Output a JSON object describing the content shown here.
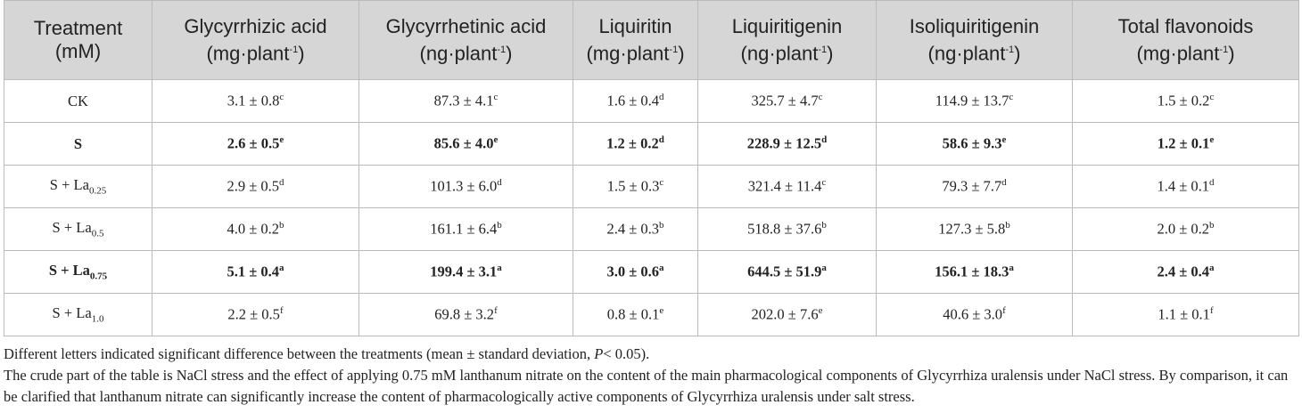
{
  "table": {
    "header": [
      {
        "text": "Treatment (mM)"
      },
      {
        "text": "Glycyrrhizic acid (mg·plant",
        "sup": "-1",
        "tail": ")"
      },
      {
        "text": "Glycyrrhetinic acid (ng·plant",
        "sup": "-1",
        "tail": ")"
      },
      {
        "text": "Liquiritin (mg·plant",
        "sup": "-1",
        "tail": ")"
      },
      {
        "text": "Liquiritigenin (ng·plant",
        "sup": "-1",
        "tail": ")"
      },
      {
        "text": "Isoliquiritigenin (ng·plant",
        "sup": "-1",
        "tail": ")"
      },
      {
        "text": "Total flavonoids (mg·plant",
        "sup": "-1",
        "tail": ")"
      }
    ],
    "rows": [
      {
        "bold": false,
        "cells": [
          {
            "text": "CK"
          },
          {
            "text": "3.1 ± 0.8",
            "sup": "c"
          },
          {
            "text": "87.3 ± 4.1",
            "sup": "c"
          },
          {
            "text": "1.6 ± 0.4",
            "sup": "d"
          },
          {
            "text": "325.7 ± 4.7",
            "sup": "c"
          },
          {
            "text": "114.9 ± 13.7",
            "sup": "c"
          },
          {
            "text": "1.5 ± 0.2",
            "sup": "c"
          }
        ]
      },
      {
        "bold": true,
        "cells": [
          {
            "text": "S"
          },
          {
            "text": "2.6 ± 0.5",
            "sup": "e"
          },
          {
            "text": "85.6 ± 4.0",
            "sup": "e"
          },
          {
            "text": "1.2 ± 0.2",
            "sup": "d"
          },
          {
            "text": "228.9 ± 12.5",
            "sup": "d"
          },
          {
            "text": "58.6 ± 9.3",
            "sup": "e"
          },
          {
            "text": "1.2 ± 0.1",
            "sup": "e"
          }
        ]
      },
      {
        "bold": false,
        "cells": [
          {
            "text": "S + La",
            "sub": "0.25"
          },
          {
            "text": "2.9 ± 0.5",
            "sup": "d"
          },
          {
            "text": "101.3 ± 6.0",
            "sup": "d"
          },
          {
            "text": "1.5 ± 0.3",
            "sup": "c"
          },
          {
            "text": "321.4 ± 11.4",
            "sup": "c"
          },
          {
            "text": "79.3 ± 7.7",
            "sup": "d"
          },
          {
            "text": "1.4 ± 0.1",
            "sup": "d"
          }
        ]
      },
      {
        "bold": false,
        "cells": [
          {
            "text": "S + La",
            "sub": "0.5"
          },
          {
            "text": "4.0 ± 0.2",
            "sup": "b"
          },
          {
            "text": "161.1 ± 6.4",
            "sup": "b"
          },
          {
            "text": "2.4 ± 0.3",
            "sup": "b"
          },
          {
            "text": "518.8 ± 37.6",
            "sup": "b"
          },
          {
            "text": "127.3 ± 5.8",
            "sup": "b"
          },
          {
            "text": "2.0 ± 0.2",
            "sup": "b"
          }
        ]
      },
      {
        "bold": true,
        "cells": [
          {
            "text": "S + La",
            "sub": "0.75"
          },
          {
            "text": "5.1 ± 0.4",
            "sup": "a"
          },
          {
            "text": "199.4 ± 3.1",
            "sup": "a"
          },
          {
            "text": "3.0 ± 0.6",
            "sup": "a"
          },
          {
            "text": "644.5 ± 51.9",
            "sup": "a"
          },
          {
            "text": "156.1 ± 18.3",
            "sup": "a"
          },
          {
            "text": "2.4 ± 0.4",
            "sup": "a"
          }
        ]
      },
      {
        "bold": false,
        "cells": [
          {
            "text": "S + La",
            "sub": "1.0"
          },
          {
            "text": "2.2 ± 0.5",
            "sup": "f"
          },
          {
            "text": "69.8 ± 3.2",
            "sup": "f"
          },
          {
            "text": "0.8 ± 0.1",
            "sup": "e"
          },
          {
            "text": "202.0 ± 7.6",
            "sup": "e"
          },
          {
            "text": "40.6 ± 3.0",
            "sup": "f"
          },
          {
            "text": "1.1 ± 0.1",
            "sup": "f"
          }
        ]
      }
    ]
  },
  "notes": [
    {
      "text": "Different letters indicated significant difference between the treatments (mean ± standard deviation, ",
      "italic": "P",
      "tail": "< 0.05)."
    },
    {
      "text": "The crude part of the table is NaCl stress and the effect of applying 0.75 mM lanthanum nitrate on the content of the main pharmacological components of Glycyrrhiza uralensis under NaCl stress. By comparison, it can be clarified that lanthanum nitrate can significantly increase the content of pharmacologically active components of Glycyrrhiza uralensis under salt stress."
    }
  ]
}
